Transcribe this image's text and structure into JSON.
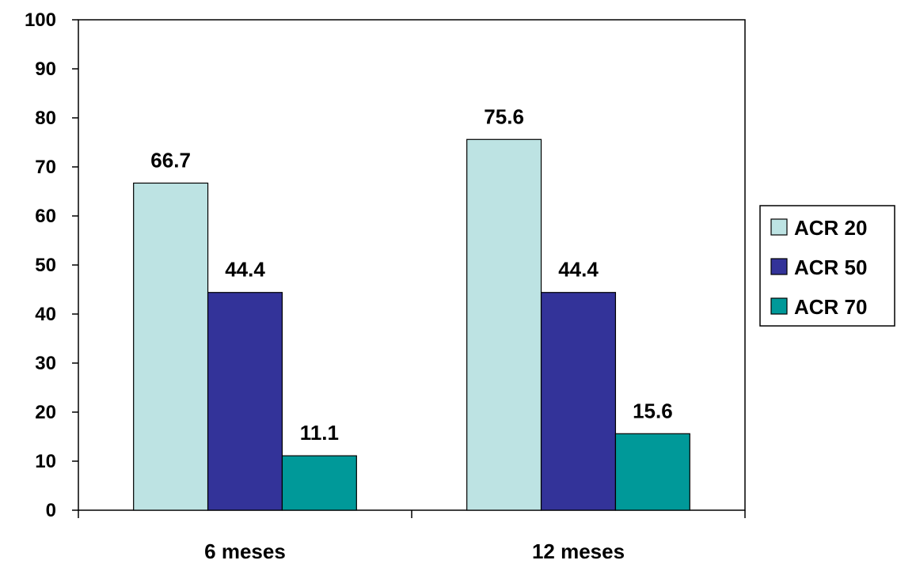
{
  "chart_data": {
    "type": "bar",
    "title": "",
    "xlabel": "",
    "ylabel": "",
    "ylim": [
      0,
      100
    ],
    "yticks": [
      0,
      10,
      20,
      30,
      40,
      50,
      60,
      70,
      80,
      90,
      100
    ],
    "grid": false,
    "legend_position": "right",
    "categories": [
      "6 meses",
      "12 meses"
    ],
    "series": [
      {
        "name": "ACR 20",
        "color": "#bde3e3",
        "values": [
          66.7,
          75.6
        ]
      },
      {
        "name": "ACR 50",
        "color": "#333399",
        "values": [
          44.4,
          44.4
        ]
      },
      {
        "name": "ACR 70",
        "color": "#009999",
        "values": [
          11.1,
          15.6
        ]
      }
    ]
  }
}
